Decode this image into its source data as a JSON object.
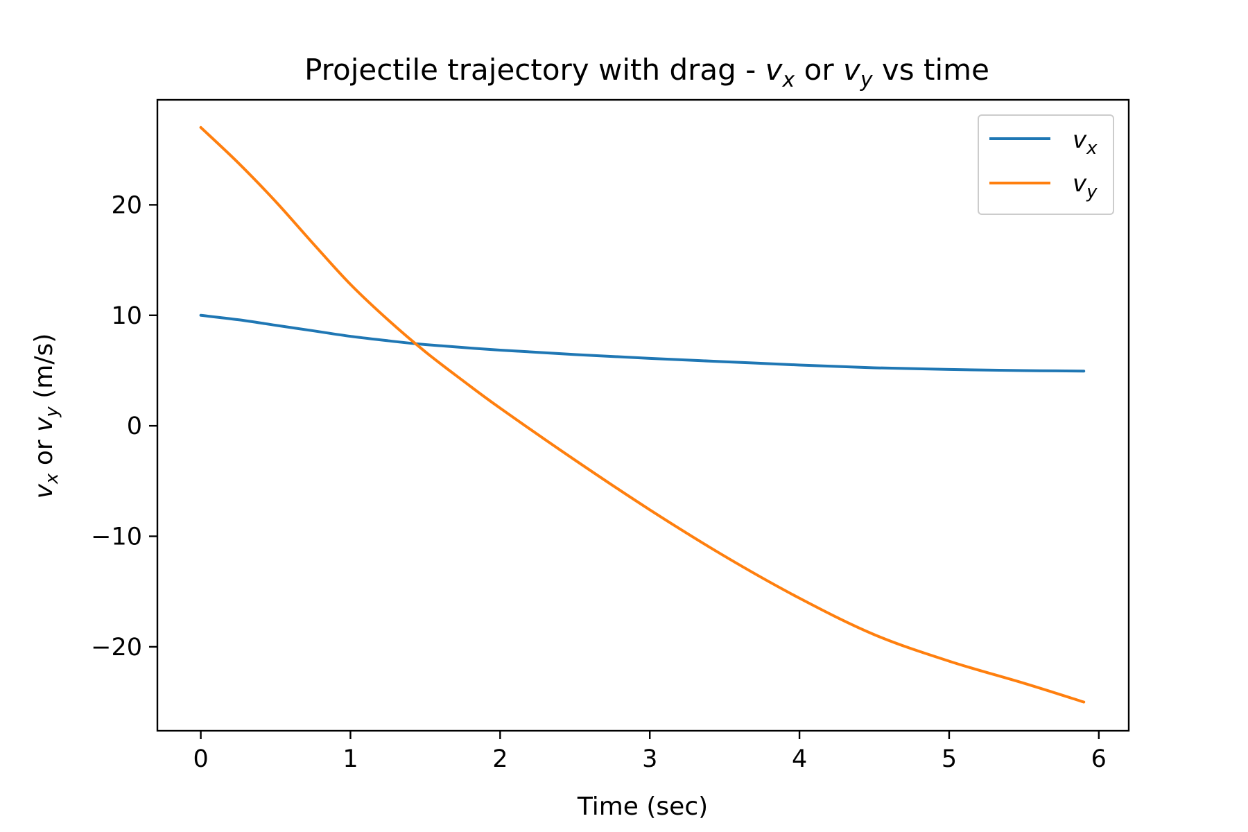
{
  "chart_data": {
    "type": "line",
    "title": {
      "text": "Projectile trajectory with drag - ",
      "v1": "v",
      "s1": "x",
      "mid": " or ",
      "v2": "v",
      "s2": "y",
      "end": " vs time"
    },
    "xlabel": "Time (sec)",
    "ylabel": {
      "v1": "v",
      "s1": "x",
      "mid": " or ",
      "v2": "v",
      "s2": "y",
      "end": " (m/s)"
    },
    "xlim": [
      -0.29,
      6.2
    ],
    "ylim": [
      -27.6,
      29.5
    ],
    "xticks": [
      0,
      1,
      2,
      3,
      4,
      5,
      6
    ],
    "yticks": [
      -20,
      -10,
      0,
      10,
      20
    ],
    "xtick_labels": [
      "0",
      "1",
      "2",
      "3",
      "4",
      "5",
      "6"
    ],
    "ytick_labels": [
      "−20",
      "−10",
      "0",
      "10",
      "20"
    ],
    "legend_position": "top-right",
    "series": [
      {
        "name": "v",
        "sub": "x",
        "color": "#1f77b4",
        "x": [
          0,
          0.25,
          0.5,
          0.75,
          1.0,
          1.25,
          1.5,
          2.0,
          2.5,
          3.0,
          3.5,
          4.0,
          4.5,
          5.0,
          5.5,
          5.9
        ],
        "y": [
          10.0,
          9.6,
          9.1,
          8.6,
          8.1,
          7.7,
          7.35,
          6.85,
          6.45,
          6.1,
          5.8,
          5.5,
          5.25,
          5.1,
          5.0,
          4.95
        ]
      },
      {
        "name": "v",
        "sub": "y",
        "color": "#ff7f0e",
        "x": [
          0,
          0.25,
          0.5,
          0.75,
          1.0,
          1.25,
          1.5,
          1.75,
          2.0,
          2.5,
          3.0,
          3.5,
          4.0,
          4.5,
          5.0,
          5.5,
          5.9
        ],
        "y": [
          27.0,
          23.8,
          20.3,
          16.5,
          12.8,
          9.6,
          6.7,
          4.1,
          1.6,
          -3.1,
          -7.6,
          -11.8,
          -15.6,
          -18.9,
          -21.3,
          -23.3,
          -25.0
        ]
      }
    ]
  }
}
